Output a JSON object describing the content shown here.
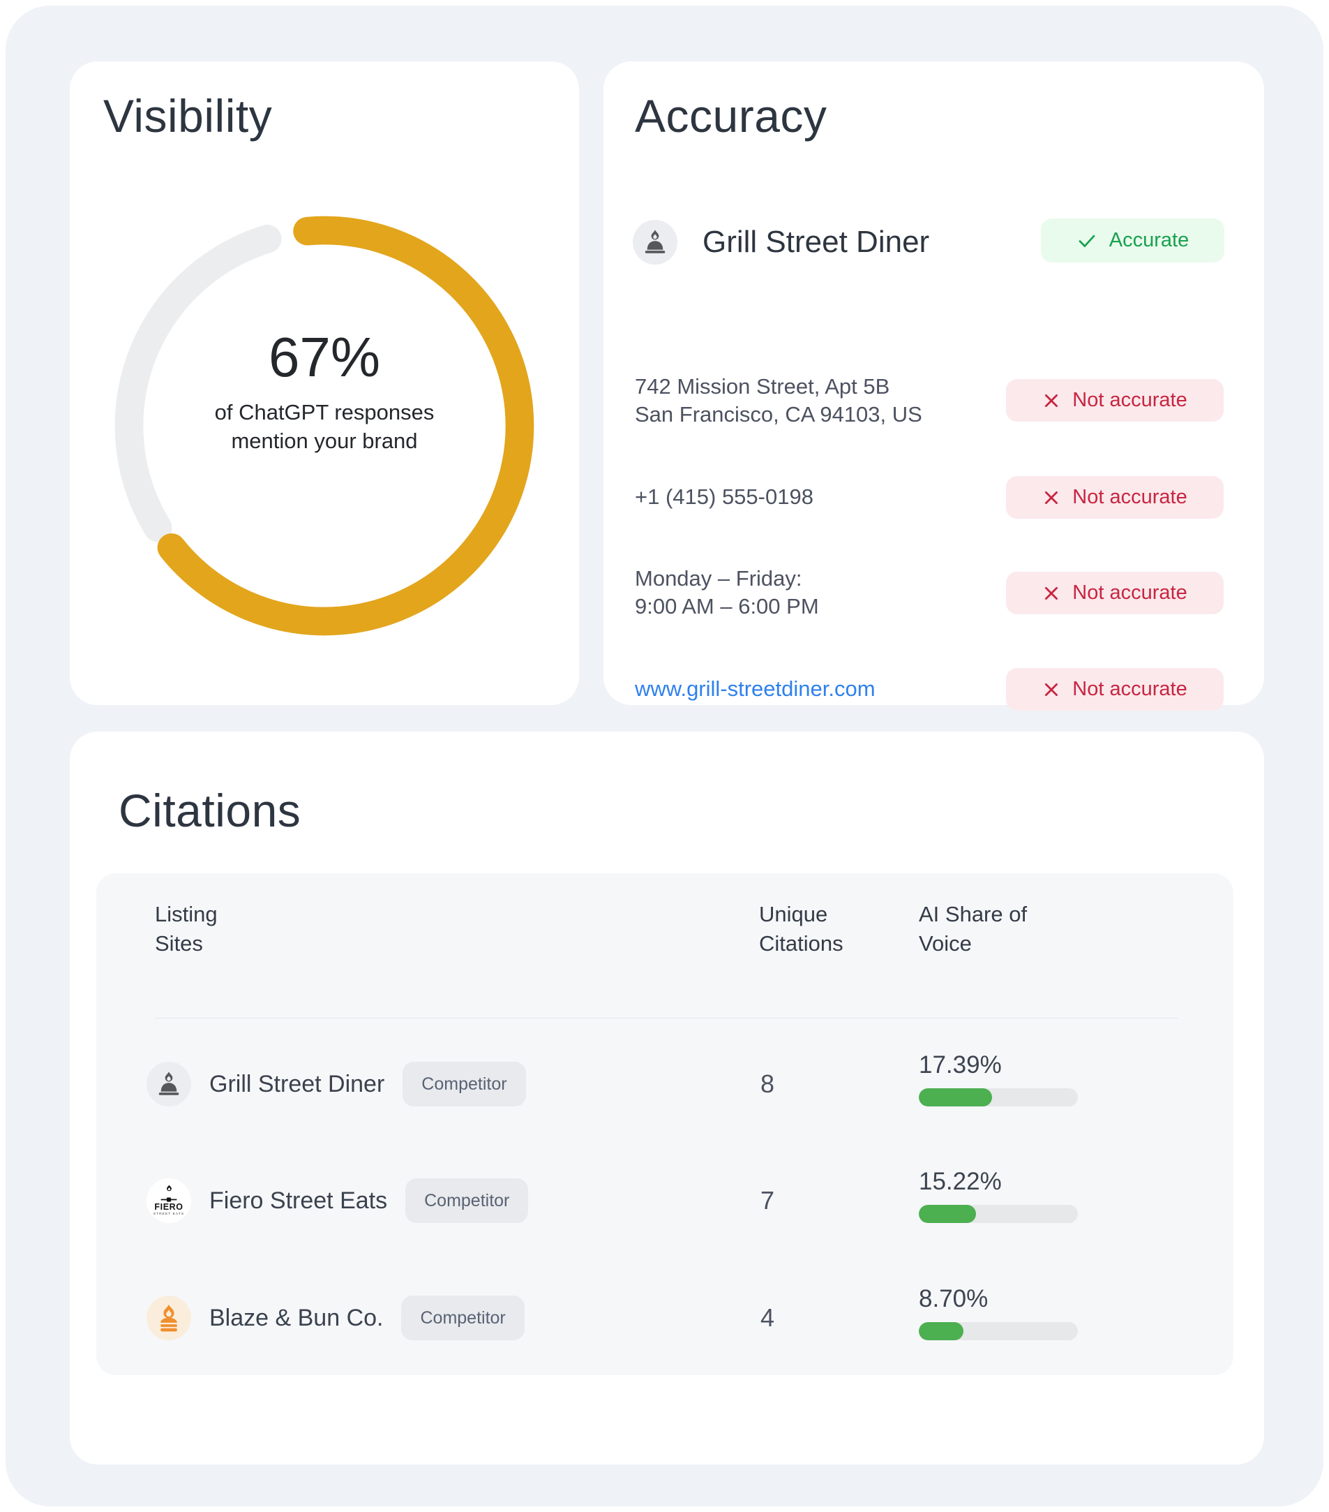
{
  "page": {
    "background": "#EFF2F6"
  },
  "visibility": {
    "title": "Visibility",
    "percent_label": "67%",
    "caption_lines": [
      "of ChatGPT responses",
      "mention your brand"
    ],
    "donut": {
      "value": 67,
      "color": "#E2A51C",
      "track_color": "#ECEDEF"
    }
  },
  "accuracy": {
    "title": "Accuracy",
    "brand": {
      "name": "Grill Street Diner",
      "status_label": "Accurate"
    },
    "fields": [
      {
        "name": "address",
        "lines": [
          "742 Mission Street, Apt 5B",
          "San Francisco, CA 94103, US"
        ],
        "status_label": "Not accurate"
      },
      {
        "name": "phone",
        "lines": [
          "+1 (415) 555-0198"
        ],
        "status_label": "Not accurate"
      },
      {
        "name": "hours",
        "lines": [
          "Monday – Friday:",
          "9:00 AM – 6:00 PM"
        ],
        "status_label": "Not accurate"
      },
      {
        "name": "website",
        "lines": [
          "www.grill-streetdiner.com"
        ],
        "status_label": "Not accurate"
      }
    ],
    "colors": {
      "accurate_bg": "#E9FBEC",
      "accurate_text": "#18A14F",
      "not_accurate_bg": "#FBE9EC",
      "not_accurate_text": "#C82540",
      "link": "#2F80ED"
    }
  },
  "citations": {
    "title": "Citations",
    "columns": [
      [
        "Listing",
        "Sites"
      ],
      [
        "Unique",
        "Citations"
      ],
      [
        "AI Share of",
        "Voice"
      ]
    ],
    "rows": [
      {
        "site": "Grill Street Diner",
        "tag": "Competitor",
        "unique_citations": "8",
        "share_label": "17.39%",
        "bar_fill_pct": 46
      },
      {
        "site": "Fiero Street Eats",
        "tag": "Competitor",
        "unique_citations": "7",
        "share_label": "15.22%",
        "bar_fill_pct": 36,
        "logo_text": "FIERO",
        "logo_subtext": "STREET EATS"
      },
      {
        "site": "Blaze & Bun Co.",
        "tag": "Competitor",
        "unique_citations": "4",
        "share_label": "8.70%",
        "bar_fill_pct": 28
      }
    ],
    "bar_color": "#4CAF50",
    "bar_track_color": "#E7E8EA"
  },
  "chart_data": [
    {
      "type": "pie",
      "title": "Visibility",
      "labels": [
        "mention your brand",
        "no mention"
      ],
      "values": [
        67,
        33
      ],
      "colors": [
        "#E2A51C",
        "#ECEDEF"
      ],
      "annotation": "67% of ChatGPT responses mention your brand"
    },
    {
      "type": "bar",
      "title": "AI Share of Voice",
      "categories": [
        "Grill Street Diner",
        "Fiero Street Eats",
        "Blaze & Bun Co."
      ],
      "series": [
        {
          "name": "AI Share of Voice %",
          "values": [
            17.39,
            15.22,
            8.7
          ]
        },
        {
          "name": "Unique Citations",
          "values": [
            8,
            7,
            4
          ]
        }
      ]
    }
  ]
}
